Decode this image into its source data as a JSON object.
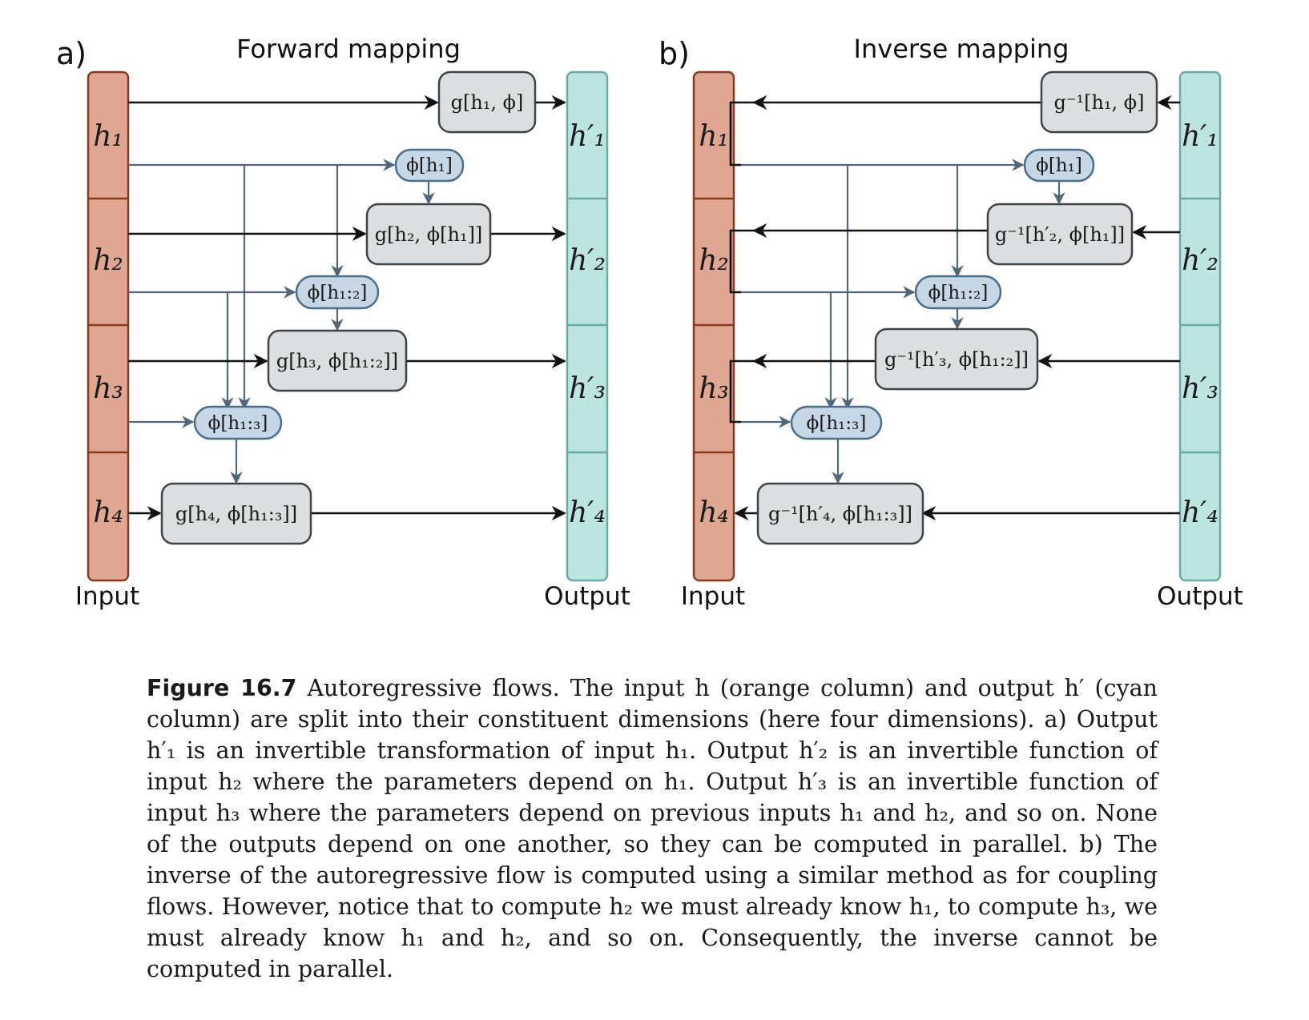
{
  "panels": [
    {
      "letter": "a)",
      "title": "Forward mapping",
      "input_label": "Input",
      "output_label": "Output",
      "inputs": [
        "h₁",
        "h₂",
        "h₃",
        "h₄"
      ],
      "outputs": [
        "h′₁",
        "h′₂",
        "h′₃",
        "h′₄"
      ],
      "g_boxes": [
        "g[h₁, ϕ]",
        "g[h₂, ϕ[h₁]]",
        "g[h₃, ϕ[h₁:₂]]",
        "g[h₄, ϕ[h₁:₃]]"
      ],
      "phi_boxes": [
        "ϕ[h₁]",
        "ϕ[h₁:₂]",
        "ϕ[h₁:₃]"
      ]
    },
    {
      "letter": "b)",
      "title": "Inverse mapping",
      "input_label": "Input",
      "output_label": "Output",
      "inputs": [
        "h₁",
        "h₂",
        "h₃",
        "h₄"
      ],
      "outputs": [
        "h′₁",
        "h′₂",
        "h′₃",
        "h′₄"
      ],
      "g_boxes": [
        "g⁻¹[h₁, ϕ]",
        "g⁻¹[h′₂, ϕ[h₁]]",
        "g⁻¹[h′₃, ϕ[h₁:₂]]",
        "g⁻¹[h′₄, ϕ[h₁:₃]]"
      ],
      "phi_boxes": [
        "ϕ[h₁]",
        "ϕ[h₁:₂]",
        "ϕ[h₁:₃]"
      ]
    }
  ],
  "colors": {
    "input_fill": "#dfa792",
    "input_stroke": "#8a3b1e",
    "output_fill": "#bce5e1",
    "output_stroke": "#6aaca5",
    "g_box_fill": "#dcdfe0",
    "phi_box_fill": "#c6d7e6",
    "dependency_line": "#4f6776"
  },
  "caption": {
    "label": "Figure 16.7",
    "text": "Autoregressive flows. The input h (orange column) and output h′ (cyan column) are split into their constituent dimensions (here four dimensions). a) Output h′₁ is an invertible transformation of input h₁. Output h′₂ is an invertible function of input h₂ where the parameters depend on h₁. Output h′₃ is an invertible function of input h₃ where the parameters depend on previous inputs h₁ and h₂, and so on. None of the outputs depend on one another, so they can be computed in parallel. b) The inverse of the autoregressive flow is computed using a similar method as for coupling flows. However, notice that to compute h₂ we must already know h₁, to compute h₃, we must already know h₁ and h₂, and so on. Consequently, the inverse cannot be computed in parallel."
  }
}
